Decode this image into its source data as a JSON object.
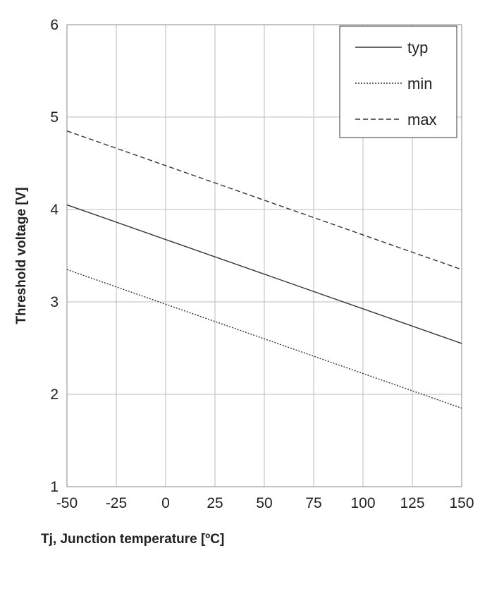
{
  "chart_data": {
    "type": "line",
    "xlabel": "Tj, Junction temperature [ºC]",
    "ylabel": "Threshold voltage [V]",
    "xlim": [
      -50,
      150
    ],
    "ylim": [
      1,
      6
    ],
    "x_ticks": [
      "-50",
      "-25",
      "0",
      "25",
      "50",
      "75",
      "100",
      "125",
      "150"
    ],
    "y_ticks": [
      "1",
      "2",
      "3",
      "4",
      "5",
      "6"
    ],
    "grid": true,
    "legend_position": "top-right",
    "series": [
      {
        "name": "typ",
        "style": "solid",
        "x": [
          -50,
          150
        ],
        "y": [
          4.05,
          2.55
        ]
      },
      {
        "name": "min",
        "style": "dotted",
        "x": [
          -50,
          150
        ],
        "y": [
          3.35,
          1.85
        ]
      },
      {
        "name": "max",
        "style": "dashed",
        "x": [
          -50,
          150
        ],
        "y": [
          4.85,
          3.35
        ]
      }
    ]
  },
  "colors": {
    "line": "#333333",
    "grid": "#bdbdbd",
    "axis": "#888888",
    "text": "#222222"
  }
}
